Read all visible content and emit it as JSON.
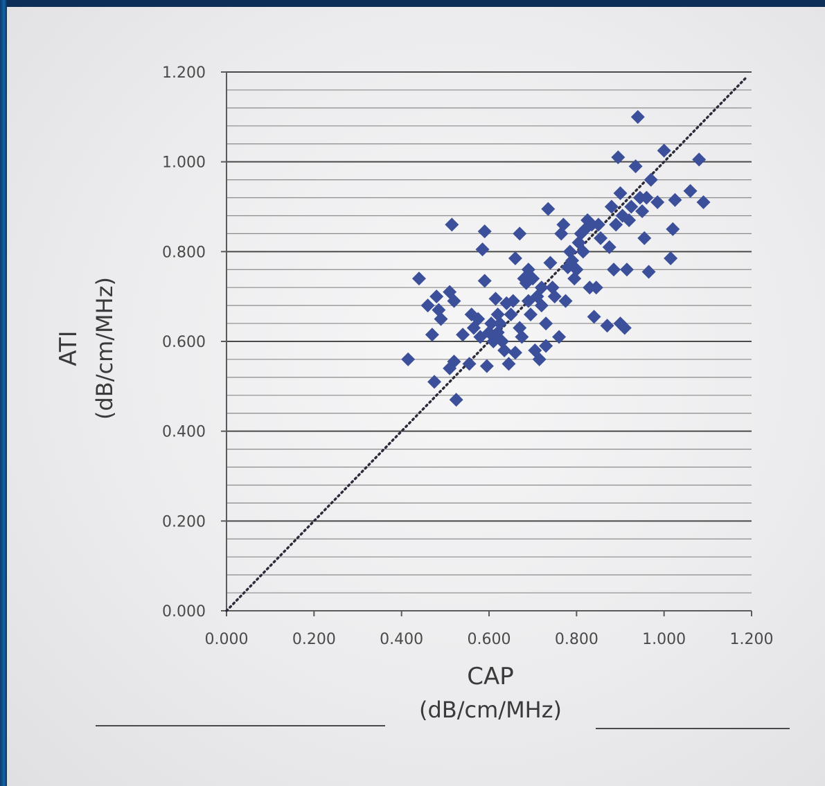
{
  "chart_data": {
    "type": "scatter",
    "xlabel": "CAP",
    "xlabel_unit": "(dB/cm/MHz)",
    "ylabel": "ATI",
    "ylabel_unit": "(dB/cm/MHz)",
    "xlim": [
      0.0,
      1.2
    ],
    "ylim": [
      0.0,
      1.2
    ],
    "x_ticks": [
      "0.000",
      "0.200",
      "0.400",
      "0.600",
      "0.800",
      "1.000",
      "1.200"
    ],
    "y_ticks": [
      "0.000",
      "0.200",
      "0.400",
      "0.600",
      "0.800",
      "1.000",
      "1.200"
    ],
    "grid": "horizontal",
    "identity_line": true,
    "marker": "diamond",
    "marker_color": "#3b4f9a",
    "points": [
      [
        0.415,
        0.56
      ],
      [
        0.44,
        0.74
      ],
      [
        0.46,
        0.68
      ],
      [
        0.47,
        0.615
      ],
      [
        0.475,
        0.51
      ],
      [
        0.48,
        0.7
      ],
      [
        0.485,
        0.67
      ],
      [
        0.49,
        0.65
      ],
      [
        0.51,
        0.71
      ],
      [
        0.51,
        0.54
      ],
      [
        0.515,
        0.86
      ],
      [
        0.52,
        0.69
      ],
      [
        0.52,
        0.555
      ],
      [
        0.525,
        0.47
      ],
      [
        0.54,
        0.615
      ],
      [
        0.555,
        0.55
      ],
      [
        0.56,
        0.66
      ],
      [
        0.565,
        0.63
      ],
      [
        0.575,
        0.65
      ],
      [
        0.58,
        0.61
      ],
      [
        0.585,
        0.805
      ],
      [
        0.59,
        0.735
      ],
      [
        0.59,
        0.845
      ],
      [
        0.595,
        0.545
      ],
      [
        0.6,
        0.62
      ],
      [
        0.605,
        0.64
      ],
      [
        0.61,
        0.6
      ],
      [
        0.615,
        0.695
      ],
      [
        0.62,
        0.66
      ],
      [
        0.62,
        0.62
      ],
      [
        0.625,
        0.64
      ],
      [
        0.63,
        0.6
      ],
      [
        0.635,
        0.58
      ],
      [
        0.64,
        0.685
      ],
      [
        0.645,
        0.55
      ],
      [
        0.65,
        0.66
      ],
      [
        0.655,
        0.69
      ],
      [
        0.66,
        0.785
      ],
      [
        0.66,
        0.575
      ],
      [
        0.67,
        0.84
      ],
      [
        0.67,
        0.63
      ],
      [
        0.675,
        0.61
      ],
      [
        0.68,
        0.74
      ],
      [
        0.685,
        0.73
      ],
      [
        0.69,
        0.76
      ],
      [
        0.69,
        0.69
      ],
      [
        0.695,
        0.66
      ],
      [
        0.7,
        0.74
      ],
      [
        0.705,
        0.58
      ],
      [
        0.71,
        0.7
      ],
      [
        0.715,
        0.56
      ],
      [
        0.72,
        0.72
      ],
      [
        0.72,
        0.68
      ],
      [
        0.73,
        0.64
      ],
      [
        0.73,
        0.59
      ],
      [
        0.735,
        0.895
      ],
      [
        0.74,
        0.775
      ],
      [
        0.745,
        0.72
      ],
      [
        0.75,
        0.7
      ],
      [
        0.76,
        0.61
      ],
      [
        0.765,
        0.84
      ],
      [
        0.77,
        0.86
      ],
      [
        0.775,
        0.69
      ],
      [
        0.78,
        0.765
      ],
      [
        0.785,
        0.8
      ],
      [
        0.79,
        0.78
      ],
      [
        0.795,
        0.74
      ],
      [
        0.8,
        0.76
      ],
      [
        0.805,
        0.82
      ],
      [
        0.81,
        0.84
      ],
      [
        0.815,
        0.8
      ],
      [
        0.82,
        0.85
      ],
      [
        0.825,
        0.87
      ],
      [
        0.83,
        0.72
      ],
      [
        0.835,
        0.86
      ],
      [
        0.84,
        0.655
      ],
      [
        0.845,
        0.72
      ],
      [
        0.85,
        0.86
      ],
      [
        0.855,
        0.83
      ],
      [
        0.87,
        0.635
      ],
      [
        0.875,
        0.81
      ],
      [
        0.88,
        0.9
      ],
      [
        0.885,
        0.76
      ],
      [
        0.89,
        0.86
      ],
      [
        0.895,
        1.01
      ],
      [
        0.9,
        0.64
      ],
      [
        0.9,
        0.93
      ],
      [
        0.905,
        0.88
      ],
      [
        0.91,
        0.63
      ],
      [
        0.915,
        0.76
      ],
      [
        0.92,
        0.87
      ],
      [
        0.925,
        0.9
      ],
      [
        0.935,
        0.99
      ],
      [
        0.94,
        1.1
      ],
      [
        0.945,
        0.92
      ],
      [
        0.95,
        0.89
      ],
      [
        0.955,
        0.83
      ],
      [
        0.96,
        0.92
      ],
      [
        0.965,
        0.755
      ],
      [
        0.97,
        0.96
      ],
      [
        0.985,
        0.91
      ],
      [
        1.0,
        1.025
      ],
      [
        1.015,
        0.785
      ],
      [
        1.02,
        0.85
      ],
      [
        1.025,
        0.915
      ],
      [
        1.06,
        0.935
      ],
      [
        1.08,
        1.005
      ],
      [
        1.09,
        0.91
      ]
    ]
  },
  "colors": {
    "gridline_major": "#4a4a4a",
    "gridline_minor": "#8a8a8a",
    "identity_line": "#2b2b3a"
  }
}
